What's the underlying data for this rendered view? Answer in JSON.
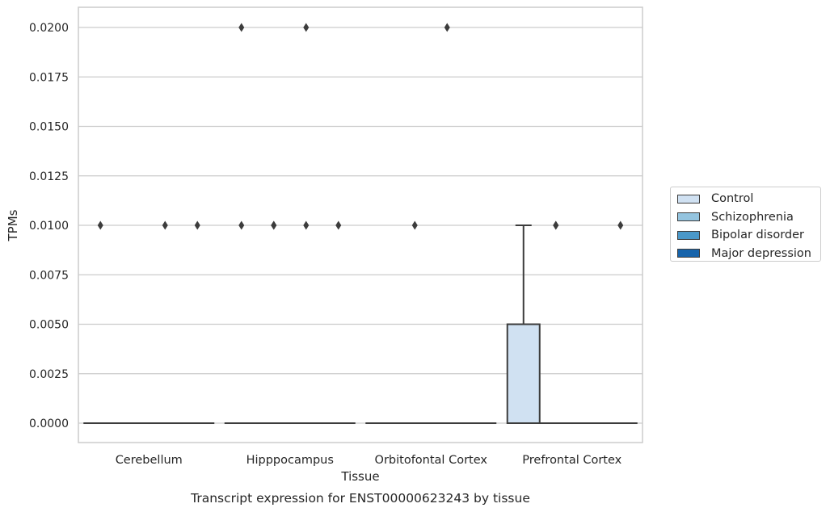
{
  "chart_data": {
    "type": "box",
    "title": "Transcript expression for ENST00000623243 by tissue",
    "xlabel": "Tissue",
    "ylabel": "TPMs",
    "ylim": [
      -0.001,
      0.021
    ],
    "yticks": [
      "0.0000",
      "0.0025",
      "0.0050",
      "0.0075",
      "0.0100",
      "0.0125",
      "0.0150",
      "0.0175",
      "0.0200"
    ],
    "ytick_values": [
      0,
      0.0025,
      0.005,
      0.0075,
      0.01,
      0.0125,
      0.015,
      0.0175,
      0.02
    ],
    "grid": true,
    "legend_position": "right",
    "categories": [
      "Cerebellum",
      "Hipppocampus",
      "Orbitofontal Cortex",
      "Prefrontal Cortex"
    ],
    "series": [
      {
        "name": "Control",
        "color": "#d0e1f2",
        "boxes": [
          {
            "q1": 0,
            "median": 0,
            "q3": 0,
            "whisker_low": 0,
            "whisker_high": 0,
            "outliers": [
              0.01
            ]
          },
          {
            "q1": 0,
            "median": 0,
            "q3": 0,
            "whisker_low": 0,
            "whisker_high": 0,
            "outliers": [
              0.02,
              0.01
            ]
          },
          {
            "q1": 0,
            "median": 0,
            "q3": 0,
            "whisker_low": 0,
            "whisker_high": 0,
            "outliers": []
          },
          {
            "q1": 0,
            "median": 0,
            "q3": 0.005,
            "whisker_low": 0,
            "whisker_high": 0.01,
            "outliers": []
          }
        ]
      },
      {
        "name": "Schizophrenia",
        "color": "#94c4df",
        "boxes": [
          {
            "q1": 0,
            "median": 0,
            "q3": 0,
            "whisker_low": 0,
            "whisker_high": 0,
            "outliers": []
          },
          {
            "q1": 0,
            "median": 0,
            "q3": 0,
            "whisker_low": 0,
            "whisker_high": 0,
            "outliers": [
              0.01,
              0.01
            ]
          },
          {
            "q1": 0,
            "median": 0,
            "q3": 0,
            "whisker_low": 0,
            "whisker_high": 0,
            "outliers": [
              0.01
            ]
          },
          {
            "q1": 0,
            "median": 0,
            "q3": 0,
            "whisker_low": 0,
            "whisker_high": 0,
            "outliers": [
              0.01,
              0.01
            ]
          }
        ]
      },
      {
        "name": "Bipolar disorder",
        "color": "#4a98c9",
        "boxes": [
          {
            "q1": 0,
            "median": 0,
            "q3": 0,
            "whisker_low": 0,
            "whisker_high": 0,
            "outliers": [
              0.01
            ]
          },
          {
            "q1": 0,
            "median": 0,
            "q3": 0,
            "whisker_low": 0,
            "whisker_high": 0,
            "outliers": [
              0.02,
              0.01
            ]
          },
          {
            "q1": 0,
            "median": 0,
            "q3": 0,
            "whisker_low": 0,
            "whisker_high": 0,
            "outliers": [
              0.02
            ]
          },
          {
            "q1": 0,
            "median": 0,
            "q3": 0,
            "whisker_low": 0,
            "whisker_high": 0,
            "outliers": []
          }
        ]
      },
      {
        "name": "Major depression",
        "color": "#1764ab",
        "boxes": [
          {
            "q1": 0,
            "median": 0,
            "q3": 0,
            "whisker_low": 0,
            "whisker_high": 0,
            "outliers": [
              0.01
            ]
          },
          {
            "q1": 0,
            "median": 0,
            "q3": 0,
            "whisker_low": 0,
            "whisker_high": 0,
            "outliers": [
              0.01
            ]
          },
          {
            "q1": 0,
            "median": 0,
            "q3": 0,
            "whisker_low": 0,
            "whisker_high": 0,
            "outliers": []
          },
          {
            "q1": 0,
            "median": 0,
            "q3": 0,
            "whisker_low": 0,
            "whisker_high": 0,
            "outliers": [
              0.01
            ]
          }
        ]
      }
    ]
  }
}
